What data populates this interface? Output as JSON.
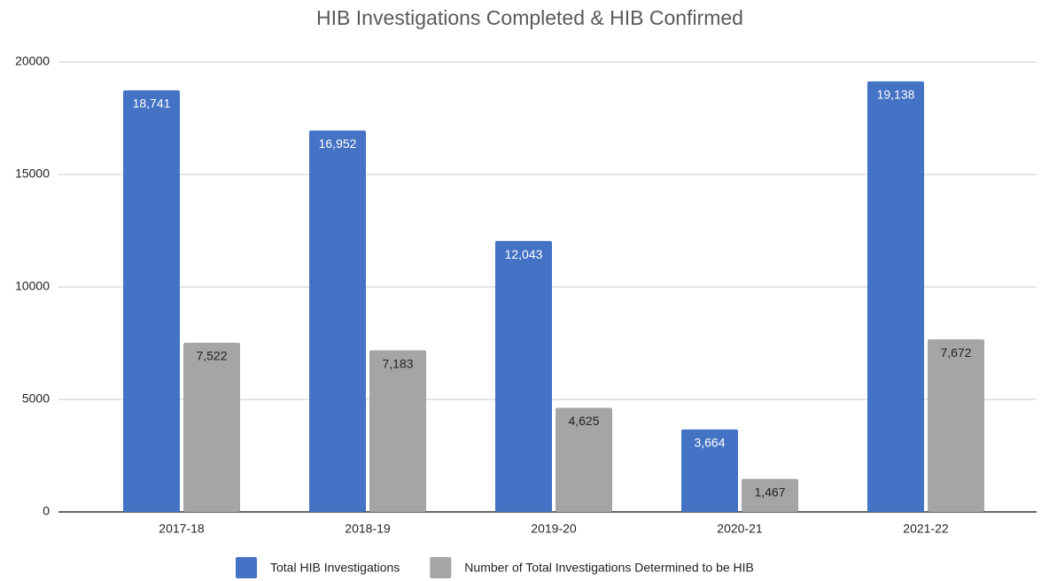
{
  "chart_data": {
    "type": "bar",
    "title": "HIB Investigations Completed & HIB Confirmed",
    "categories": [
      "2017-18",
      "2018-19",
      "2019-20",
      "2020-21",
      "2021-22"
    ],
    "series": [
      {
        "name": "Total HIB Investigations",
        "color": "#4472c4",
        "values": [
          18741,
          16952,
          12043,
          3664,
          19138
        ],
        "value_labels": [
          "18,741",
          "16,952",
          "12,043",
          "3,664",
          "19,138"
        ]
      },
      {
        "name": "Number of Total Investigations Determined to be HIB",
        "color": "#a5a5a5",
        "values": [
          7522,
          7183,
          4625,
          1467,
          7672
        ],
        "value_labels": [
          "7,522",
          "7,183",
          "4,625",
          "1,467",
          "7,672"
        ]
      }
    ],
    "ylim": [
      0,
      20000
    ],
    "yticks": [
      0,
      5000,
      10000,
      15000,
      20000
    ],
    "grid": true,
    "legend": "bottom"
  }
}
